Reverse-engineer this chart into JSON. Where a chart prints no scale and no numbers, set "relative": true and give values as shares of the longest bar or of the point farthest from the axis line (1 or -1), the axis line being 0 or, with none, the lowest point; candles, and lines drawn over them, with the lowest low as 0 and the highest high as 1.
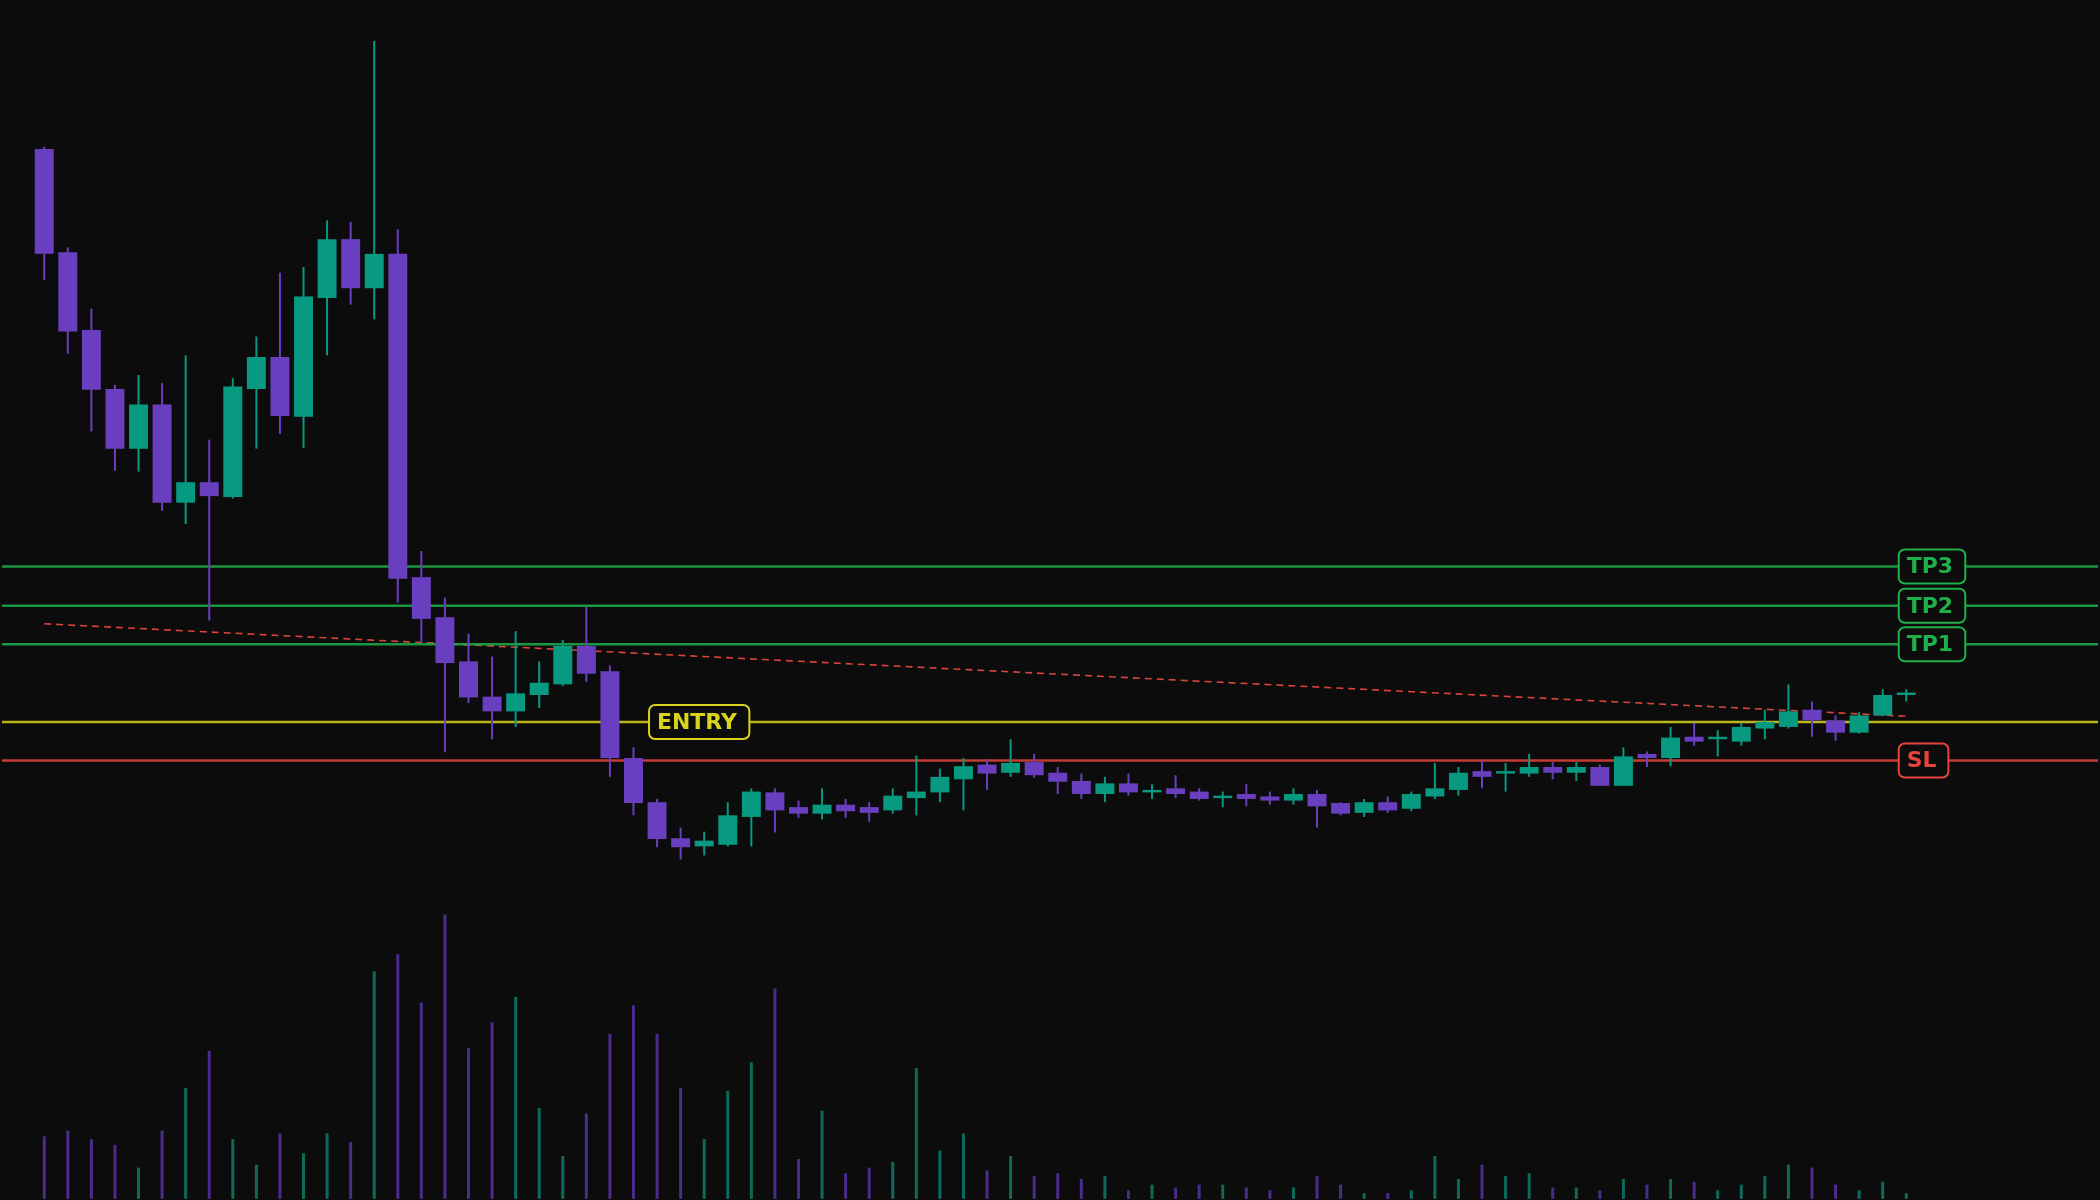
{
  "chart_data": [
    {
      "type": "candlestick",
      "relative": true,
      "categories": [
        null,
        null,
        null,
        null,
        null,
        null,
        null,
        null,
        null,
        null,
        null,
        null,
        null,
        null,
        null,
        null,
        null,
        null,
        null,
        null,
        null,
        null,
        null,
        null,
        null,
        null,
        null,
        null,
        null,
        null,
        null,
        null,
        null,
        null,
        null,
        null,
        null,
        null,
        null,
        null,
        null,
        null,
        null,
        null,
        null,
        null,
        null,
        null,
        null,
        null,
        null,
        null,
        null,
        null,
        null,
        null,
        null,
        null,
        null,
        null,
        null,
        null,
        null,
        null,
        null,
        null,
        null,
        null,
        null,
        null,
        null,
        null,
        null,
        null,
        null,
        null,
        null,
        null,
        null,
        null
      ],
      "ohlc": [
        [
          0.868,
          0.871,
          0.708,
          0.74
        ],
        [
          0.742,
          0.748,
          0.618,
          0.645
        ],
        [
          0.647,
          0.673,
          0.523,
          0.574
        ],
        [
          0.575,
          0.58,
          0.475,
          0.502
        ],
        [
          0.502,
          0.592,
          0.474,
          0.556
        ],
        [
          0.556,
          0.582,
          0.426,
          0.436
        ],
        [
          0.436,
          0.616,
          0.41,
          0.461
        ],
        [
          0.461,
          0.513,
          0.292,
          0.444
        ],
        [
          0.443,
          0.588,
          0.441,
          0.578
        ],
        [
          0.575,
          0.639,
          0.502,
          0.614
        ],
        [
          0.614,
          0.717,
          0.52,
          0.542
        ],
        [
          0.541,
          0.724,
          0.503,
          0.688
        ],
        [
          0.686,
          0.781,
          0.616,
          0.758
        ],
        [
          0.758,
          0.779,
          0.678,
          0.698
        ],
        [
          0.698,
          1,
          0.66,
          0.74
        ],
        [
          0.74,
          0.77,
          0.314,
          0.343
        ],
        [
          0.345,
          0.377,
          0.265,
          0.294
        ],
        [
          0.296,
          0.32,
          0.131,
          0.24
        ],
        [
          0.242,
          0.276,
          0.191,
          0.198
        ],
        [
          0.199,
          0.248,
          0.147,
          0.181
        ],
        [
          0.181,
          0.279,
          0.162,
          0.203
        ],
        [
          0.201,
          0.242,
          0.185,
          0.216
        ],
        [
          0.214,
          0.268,
          0.212,
          0.261
        ],
        [
          0.261,
          0.309,
          0.217,
          0.227
        ],
        [
          0.23,
          0.237,
          0.101,
          0.124
        ],
        [
          0.124,
          0.137,
          0.054,
          0.069
        ],
        [
          0.07,
          0.074,
          0.015,
          0.025
        ],
        [
          0.026,
          0.039,
          0,
          0.015
        ],
        [
          0.016,
          0.034,
          0.005,
          0.023
        ],
        [
          0.018,
          0.07,
          0.016,
          0.054
        ],
        [
          0.052,
          0.087,
          0.016,
          0.083
        ],
        [
          0.082,
          0.087,
          0.033,
          0.06
        ],
        [
          0.064,
          0.072,
          0.051,
          0.056
        ],
        [
          0.056,
          0.087,
          0.049,
          0.067
        ],
        [
          0.067,
          0.074,
          0.051,
          0.059
        ],
        [
          0.064,
          0.07,
          0.046,
          0.057
        ],
        [
          0.06,
          0.087,
          0.056,
          0.078
        ],
        [
          0.075,
          0.127,
          0.054,
          0.083
        ],
        [
          0.082,
          0.111,
          0.07,
          0.101
        ],
        [
          0.098,
          0.124,
          0.06,
          0.114
        ],
        [
          0.116,
          0.123,
          0.085,
          0.105
        ],
        [
          0.106,
          0.147,
          0.101,
          0.118
        ],
        [
          0.119,
          0.129,
          0.1,
          0.103
        ],
        [
          0.106,
          0.113,
          0.08,
          0.095
        ],
        [
          0.096,
          0.105,
          0.074,
          0.08
        ],
        [
          0.08,
          0.101,
          0.07,
          0.093
        ],
        [
          0.093,
          0.105,
          0.078,
          0.082
        ],
        [
          0.082,
          0.092,
          0.074,
          0.085
        ],
        [
          0.087,
          0.103,
          0.075,
          0.08
        ],
        [
          0.083,
          0.087,
          0.072,
          0.074
        ],
        [
          0.075,
          0.083,
          0.064,
          0.078
        ],
        [
          0.08,
          0.092,
          0.065,
          0.074
        ],
        [
          0.077,
          0.083,
          0.067,
          0.072
        ],
        [
          0.072,
          0.087,
          0.067,
          0.08
        ],
        [
          0.08,
          0.085,
          0.039,
          0.065
        ],
        [
          0.069,
          0.07,
          0.054,
          0.056
        ],
        [
          0.057,
          0.074,
          0.052,
          0.07
        ],
        [
          0.07,
          0.077,
          0.057,
          0.06
        ],
        [
          0.062,
          0.083,
          0.059,
          0.08
        ],
        [
          0.077,
          0.118,
          0.074,
          0.087
        ],
        [
          0.085,
          0.113,
          0.078,
          0.106
        ],
        [
          0.108,
          0.121,
          0.087,
          0.101
        ],
        [
          0.105,
          0.118,
          0.083,
          0.108
        ],
        [
          0.105,
          0.129,
          0.101,
          0.113
        ],
        [
          0.113,
          0.119,
          0.098,
          0.106
        ],
        [
          0.106,
          0.119,
          0.096,
          0.113
        ],
        [
          0.113,
          0.116,
          0.09,
          0.09
        ],
        [
          0.09,
          0.137,
          0.09,
          0.126
        ],
        [
          0.129,
          0.132,
          0.113,
          0.124
        ],
        [
          0.124,
          0.162,
          0.114,
          0.149
        ],
        [
          0.15,
          0.167,
          0.139,
          0.144
        ],
        [
          0.147,
          0.158,
          0.126,
          0.15
        ],
        [
          0.144,
          0.167,
          0.139,
          0.162
        ],
        [
          0.16,
          0.183,
          0.147,
          0.168
        ],
        [
          0.162,
          0.214,
          0.16,
          0.181
        ],
        [
          0.183,
          0.193,
          0.15,
          0.17
        ],
        [
          0.17,
          0.176,
          0.145,
          0.155
        ],
        [
          0.155,
          0.18,
          0.154,
          0.176
        ],
        [
          0.176,
          0.208,
          0.175,
          0.201
        ],
        [
          0.201,
          0.208,
          0.193,
          0.204
        ]
      ],
      "colors": [
        "#6a3fbf",
        "#6a3fbf",
        "#6a3fbf",
        "#6a3fbf",
        "#089981",
        "#6a3fbf",
        "#089981",
        "#6a3fbf",
        "#089981",
        "#089981",
        "#6a3fbf",
        "#089981",
        "#089981",
        "#6a3fbf",
        "#089981",
        "#6a3fbf",
        "#6a3fbf",
        "#6a3fbf",
        "#6a3fbf",
        "#6a3fbf",
        "#089981",
        "#089981",
        "#089981",
        "#6a3fbf",
        "#6a3fbf",
        "#6a3fbf",
        "#6a3fbf",
        "#6a3fbf",
        "#089981",
        "#089981",
        "#089981",
        "#6a3fbf",
        "#6a3fbf",
        "#089981",
        "#6a3fbf",
        "#6a3fbf",
        "#089981",
        "#089981",
        "#089981",
        "#089981",
        "#6a3fbf",
        "#089981",
        "#6a3fbf",
        "#6a3fbf",
        "#6a3fbf",
        "#089981",
        "#6a3fbf",
        "#089981",
        "#6a3fbf",
        "#6a3fbf",
        "#089981",
        "#6a3fbf",
        "#6a3fbf",
        "#089981",
        "#6a3fbf",
        "#6a3fbf",
        "#089981",
        "#6a3fbf",
        "#089981",
        "#089981",
        "#089981",
        "#6a3fbf",
        "#089981",
        "#089981",
        "#6a3fbf",
        "#089981",
        "#6a3fbf",
        "#089981",
        "#6a3fbf",
        "#089981",
        "#6a3fbf",
        "#089981",
        "#089981",
        "#089981",
        "#089981",
        "#6a3fbf",
        "#6a3fbf",
        "#089981",
        "#089981",
        "#089981"
      ],
      "series": [
        {
          "type": "line",
          "color": "#d9453c",
          "line_style": "dashed",
          "values": [
            0.288,
            null,
            null,
            null,
            null,
            null,
            null,
            null,
            null,
            null,
            null,
            null,
            null,
            null,
            null,
            null,
            null,
            null,
            null,
            null,
            null,
            null,
            null,
            null,
            null,
            null,
            null,
            null,
            null,
            null,
            null,
            null,
            null,
            null,
            null,
            null,
            null,
            null,
            null,
            null,
            null,
            null,
            null,
            null,
            null,
            null,
            null,
            null,
            null,
            null,
            null,
            null,
            null,
            null,
            null,
            null,
            null,
            null,
            null,
            null,
            null,
            null,
            null,
            null,
            null,
            null,
            null,
            null,
            null,
            null,
            null,
            null,
            null,
            null,
            null,
            null,
            null,
            null,
            null,
            0.175
          ]
        }
      ],
      "ref_lines": [
        {
          "axis": "y",
          "value": 0.358,
          "label": "TP3",
          "color": "#1fb04c"
        },
        {
          "axis": "y",
          "value": 0.31,
          "label": "TP2",
          "color": "#1fb04c"
        },
        {
          "axis": "y",
          "value": 0.263,
          "label": "TP1",
          "color": "#1fb04c"
        },
        {
          "axis": "y",
          "value": 0.168,
          "label": "ENTRY",
          "color": "#d8d41e"
        },
        {
          "axis": "y",
          "value": 0.121,
          "label": "SL",
          "color": "#e5443c"
        }
      ]
    },
    {
      "type": "bar",
      "relative": true,
      "categories": [
        null,
        null,
        null,
        null,
        null,
        null,
        null,
        null,
        null,
        null,
        null,
        null,
        null,
        null,
        null,
        null,
        null,
        null,
        null,
        null,
        null,
        null,
        null,
        null,
        null,
        null,
        null,
        null,
        null,
        null,
        null,
        null,
        null,
        null,
        null,
        null,
        null,
        null,
        null,
        null,
        null,
        null,
        null,
        null,
        null,
        null,
        null,
        null,
        null,
        null,
        null,
        null,
        null,
        null,
        null,
        null,
        null,
        null,
        null,
        null,
        null,
        null,
        null,
        null,
        null,
        null,
        null,
        null,
        null,
        null,
        null,
        null,
        null,
        null,
        null,
        null,
        null,
        null,
        null,
        null
      ],
      "values": [
        0.22,
        0.24,
        0.21,
        0.19,
        0.11,
        0.24,
        0.39,
        0.52,
        0.21,
        0.12,
        0.23,
        0.16,
        0.23,
        0.2,
        0.8,
        0.86,
        0.69,
        1,
        0.53,
        0.62,
        0.71,
        0.32,
        0.15,
        0.3,
        0.58,
        0.68,
        0.58,
        0.39,
        0.21,
        0.38,
        0.48,
        0.74,
        0.14,
        0.31,
        0.09,
        0.11,
        0.13,
        0.46,
        0.17,
        0.23,
        0.1,
        0.15,
        0.08,
        0.09,
        0.07,
        0.08,
        0.03,
        0.05,
        0.04,
        0.05,
        0.05,
        0.04,
        0.03,
        0.04,
        0.08,
        0.05,
        0.02,
        0.02,
        0.03,
        0.15,
        0.07,
        0.12,
        0.08,
        0.09,
        0.04,
        0.04,
        0.03,
        0.07,
        0.05,
        0.07,
        0.06,
        0.03,
        0.05,
        0.08,
        0.12,
        0.11,
        0.05,
        0.03,
        0.06,
        0.02
      ],
      "colors": [
        "#4b2c8c",
        "#4b2c8c",
        "#4b2c8c",
        "#4b2c8c",
        "#0d6b5b",
        "#4b2c8c",
        "#0d6b5b",
        "#4b2c8c",
        "#0d6b5b",
        "#0d6b5b",
        "#4b2c8c",
        "#0d6b5b",
        "#0d6b5b",
        "#4b2c8c",
        "#0d6b5b",
        "#4b2c8c",
        "#4b2c8c",
        "#4b2c8c",
        "#4b2c8c",
        "#4b2c8c",
        "#0d6b5b",
        "#0d6b5b",
        "#0d6b5b",
        "#4b2c8c",
        "#4b2c8c",
        "#4b2c8c",
        "#4b2c8c",
        "#4b2c8c",
        "#0d6b5b",
        "#0d6b5b",
        "#0d6b5b",
        "#4b2c8c",
        "#4b2c8c",
        "#0d6b5b",
        "#4b2c8c",
        "#4b2c8c",
        "#0d6b5b",
        "#0d6b5b",
        "#0d6b5b",
        "#0d6b5b",
        "#4b2c8c",
        "#0d6b5b",
        "#4b2c8c",
        "#4b2c8c",
        "#4b2c8c",
        "#0d6b5b",
        "#4b2c8c",
        "#0d6b5b",
        "#4b2c8c",
        "#4b2c8c",
        "#0d6b5b",
        "#4b2c8c",
        "#4b2c8c",
        "#0d6b5b",
        "#4b2c8c",
        "#4b2c8c",
        "#0d6b5b",
        "#4b2c8c",
        "#0d6b5b",
        "#0d6b5b",
        "#0d6b5b",
        "#4b2c8c",
        "#0d6b5b",
        "#0d6b5b",
        "#4b2c8c",
        "#0d6b5b",
        "#4b2c8c",
        "#0d6b5b",
        "#4b2c8c",
        "#0d6b5b",
        "#4b2c8c",
        "#0d6b5b",
        "#0d6b5b",
        "#0d6b5b",
        "#0d6b5b",
        "#4b2c8c",
        "#4b2c8c",
        "#0d6b5b",
        "#0d6b5b",
        "#0d6b5b"
      ]
    }
  ]
}
